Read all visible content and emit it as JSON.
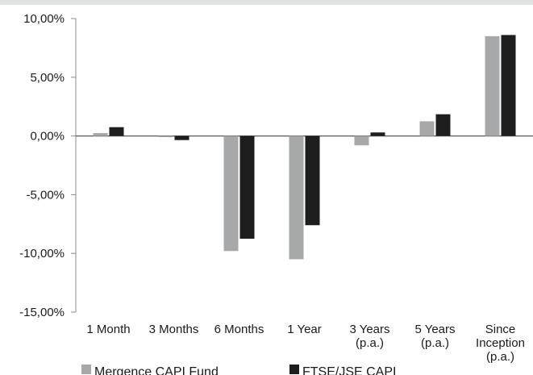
{
  "chart_data": {
    "type": "bar",
    "categories": [
      [
        "1 Month"
      ],
      [
        "3 Months"
      ],
      [
        "6 Months"
      ],
      [
        "1 Year"
      ],
      [
        "3 Years",
        "(p.a.)"
      ],
      [
        "5 Years",
        "(p.a.)"
      ],
      [
        "Since",
        "Inception",
        "(p.a.)"
      ]
    ],
    "series": [
      {
        "name": "Mergence CAPI Fund",
        "color": "#a6a8aa",
        "values": [
          0.25,
          -0.1,
          -9.8,
          -10.5,
          -0.8,
          1.25,
          8.5
        ]
      },
      {
        "name": "FTSE/JSE CAPI",
        "color": "#1e1e1e",
        "values": [
          0.75,
          -0.35,
          -8.75,
          -7.6,
          0.3,
          1.85,
          8.6
        ]
      }
    ],
    "ylim": [
      -15,
      10
    ],
    "yticks": [
      10,
      5,
      0,
      -5,
      -10,
      -15
    ],
    "ytick_labels": [
      "10,00%",
      "5,00%",
      "0,00%",
      "-5,00%",
      "-10,00%",
      "-15,00%"
    ],
    "grid": false,
    "legend": "bottom"
  }
}
